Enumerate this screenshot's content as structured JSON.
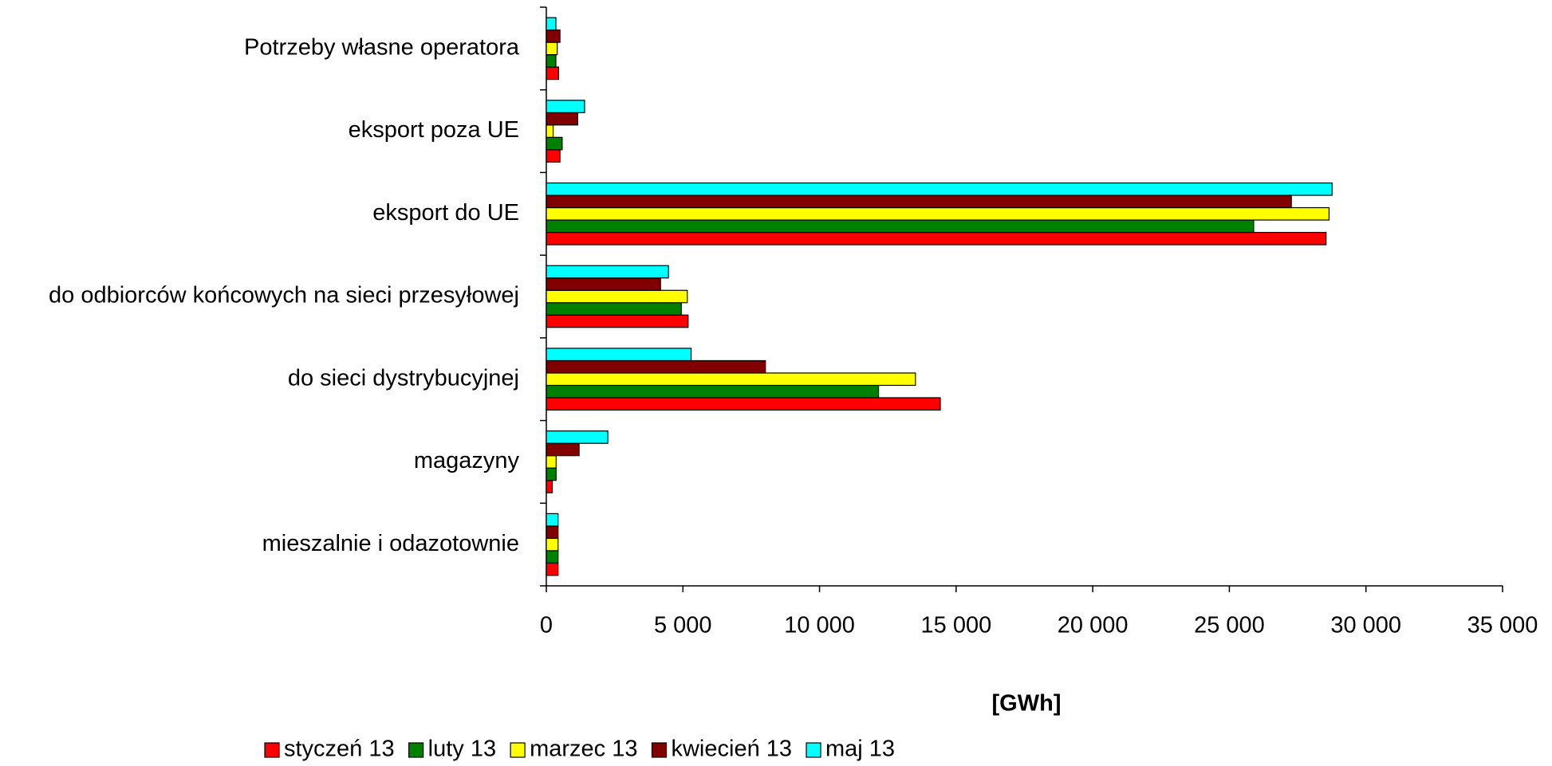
{
  "chart_data": {
    "type": "bar",
    "orientation": "horizontal",
    "x_label": "[GWh]",
    "categories": [
      "Potrzeby własne operatora",
      "eksport poza UE",
      "eksport do UE",
      "do odbiorców końcowych na sieci przesyłowej",
      "do sieci dystrybucyjnej",
      "magazyny",
      "mieszalnie i odazotownie"
    ],
    "series": [
      {
        "name": "styczeń 13",
        "color": "#ff0000",
        "values": [
          450,
          500,
          28540,
          5190,
          14420,
          220,
          430
        ]
      },
      {
        "name": "luty 13",
        "color": "#008000",
        "values": [
          350,
          580,
          25890,
          4940,
          12160,
          360,
          430
        ]
      },
      {
        "name": "marzec 13",
        "color": "#ffff00",
        "values": [
          400,
          250,
          28650,
          5160,
          13510,
          360,
          430
        ]
      },
      {
        "name": "kwiecień 13",
        "color": "#800000",
        "values": [
          500,
          1150,
          27270,
          4180,
          8020,
          1200,
          430
        ]
      },
      {
        "name": "maj 13",
        "color": "#00ffff",
        "values": [
          350,
          1400,
          28760,
          4470,
          5300,
          2250,
          430
        ]
      }
    ],
    "xlim": [
      0,
      35000
    ],
    "xticks": [
      0,
      {
        "value": 5000,
        "label": "5 000"
      },
      {
        "value": 10000,
        "label": "10 000"
      },
      {
        "value": 15000,
        "label": "15 000"
      },
      {
        "value": 20000,
        "label": "20 000"
      },
      {
        "value": 25000,
        "label": "25 000"
      },
      {
        "value": 30000,
        "label": "30 000"
      },
      {
        "value": 35000,
        "label": "35 000"
      }
    ],
    "grid": false,
    "legend": "bottom"
  }
}
